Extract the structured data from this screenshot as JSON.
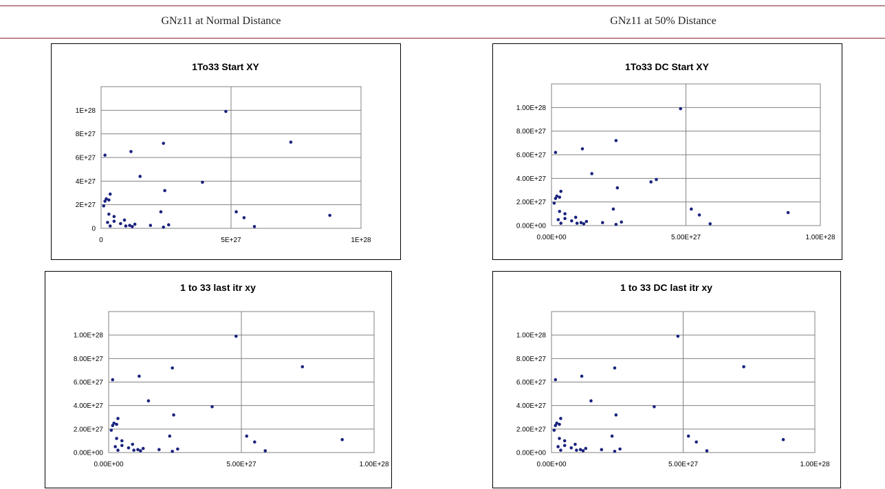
{
  "headers": {
    "left": "GNz11 at Normal Distance",
    "right": "GNz11 at 50% Distance"
  },
  "colors": {
    "marker": "#1a237e",
    "rule": "#8a2230",
    "grid": "#808080"
  },
  "chart_data": [
    {
      "type": "scatter",
      "title": "1To33 Start XY",
      "xlim": [
        0,
        1e+28
      ],
      "ylim": [
        0,
        1.2e+28
      ],
      "xticks": [
        0,
        5e+27,
        1e+28
      ],
      "xtick_labels": [
        "0",
        "5E+27",
        "1E+28"
      ],
      "yticks": [
        0,
        2e+27,
        4e+27,
        6e+27,
        8e+27,
        1e+28
      ],
      "ytick_labels": [
        "0",
        "2E+27",
        "4E+27",
        "6E+27",
        "8E+27",
        "1E+28"
      ],
      "grid": {
        "x": true,
        "y": true
      },
      "points": [
        [
          1e+26,
          1.9e+27
        ],
        [
          1.5e+26,
          2.3e+27
        ],
        [
          2e+26,
          2.5e+27
        ],
        [
          3e+26,
          2.4e+27
        ],
        [
          1.5e+26,
          6.2e+27
        ],
        [
          3.5e+26,
          2.9e+27
        ],
        [
          2.5e+26,
          5e+26
        ],
        [
          3e+26,
          1.2e+27
        ],
        [
          3.5e+26,
          2e+26
        ],
        [
          5e+26,
          1e+27
        ],
        [
          5e+26,
          6e+26
        ],
        [
          7.5e+26,
          4e+26
        ],
        [
          9e+26,
          7e+26
        ],
        [
          9.5e+26,
          2e+26
        ],
        [
          1.1e+27,
          2.5e+26
        ],
        [
          1.2e+27,
          1.5e+26
        ],
        [
          1.3e+27,
          3.5e+26
        ],
        [
          1.15e+27,
          6.5e+27
        ],
        [
          1.5e+27,
          4.4e+27
        ],
        [
          1.9e+27,
          2.5e+26
        ],
        [
          2.3e+27,
          1.4e+27
        ],
        [
          2.4e+27,
          7.2e+27
        ],
        [
          2.45e+27,
          3.2e+27
        ],
        [
          2.4e+27,
          1e+26
        ],
        [
          2.6e+27,
          3e+26
        ],
        [
          3.9e+27,
          3.9e+27
        ],
        [
          4.8e+27,
          9.9e+27
        ],
        [
          5.2e+27,
          1.4e+27
        ],
        [
          5.5e+27,
          9e+26
        ],
        [
          5.9e+27,
          1.5e+26
        ],
        [
          7.3e+27,
          7.3e+27
        ],
        [
          8.8e+27,
          1.1e+27
        ]
      ]
    },
    {
      "type": "scatter",
      "title": "1To33 DC Start XY",
      "xlim": [
        0,
        1e+28
      ],
      "ylim": [
        0,
        1.2e+28
      ],
      "xticks": [
        0,
        5e+27,
        1e+28
      ],
      "xtick_labels": [
        "0.00E+00",
        "5.00E+27",
        "1.00E+28"
      ],
      "yticks": [
        0,
        2e+27,
        4e+27,
        6e+27,
        8e+27,
        1e+28
      ],
      "ytick_labels": [
        "0.00E+00",
        "2.00E+27",
        "4.00E+27",
        "6.00E+27",
        "8.00E+27",
        "1.00E+28"
      ],
      "grid": {
        "x": true,
        "y": true
      },
      "points": [
        [
          1e+26,
          1.9e+27
        ],
        [
          1.5e+26,
          2.3e+27
        ],
        [
          2e+26,
          2.5e+27
        ],
        [
          3e+26,
          2.4e+27
        ],
        [
          1.5e+26,
          6.2e+27
        ],
        [
          3.5e+26,
          2.9e+27
        ],
        [
          2.5e+26,
          5e+26
        ],
        [
          3e+26,
          1.2e+27
        ],
        [
          3.5e+26,
          2e+26
        ],
        [
          5e+26,
          1e+27
        ],
        [
          5e+26,
          6e+26
        ],
        [
          7.5e+26,
          4e+26
        ],
        [
          9e+26,
          7e+26
        ],
        [
          9.5e+26,
          2e+26
        ],
        [
          1.1e+27,
          2.5e+26
        ],
        [
          1.2e+27,
          1.5e+26
        ],
        [
          1.3e+27,
          3.5e+26
        ],
        [
          1.15e+27,
          6.5e+27
        ],
        [
          1.5e+27,
          4.4e+27
        ],
        [
          1.9e+27,
          2.5e+26
        ],
        [
          2.3e+27,
          1.4e+27
        ],
        [
          2.4e+27,
          7.2e+27
        ],
        [
          2.45e+27,
          3.2e+27
        ],
        [
          2.4e+27,
          1e+26
        ],
        [
          2.6e+27,
          3e+26
        ],
        [
          3.7e+27,
          3.7e+27
        ],
        [
          3.9e+27,
          3.9e+27
        ],
        [
          4.8e+27,
          9.9e+27
        ],
        [
          5.2e+27,
          1.4e+27
        ],
        [
          5.5e+27,
          9e+26
        ],
        [
          5.9e+27,
          1.5e+26
        ],
        [
          8.8e+27,
          1.1e+27
        ]
      ]
    },
    {
      "type": "scatter",
      "title": "1 to 33 last itr xy",
      "xlim": [
        0,
        1e+28
      ],
      "ylim": [
        0,
        1.2e+28
      ],
      "xticks": [
        0,
        5e+27,
        1e+28
      ],
      "xtick_labels": [
        "0.00E+00",
        "5.00E+27",
        "1.00E+28"
      ],
      "yticks": [
        0,
        2e+27,
        4e+27,
        6e+27,
        8e+27,
        1e+28
      ],
      "ytick_labels": [
        "0.00E+00",
        "2.00E+27",
        "4.00E+27",
        "6.00E+27",
        "8.00E+27",
        "1.00E+28"
      ],
      "grid": {
        "x": true,
        "y": true
      },
      "points": [
        [
          1e+26,
          1.9e+27
        ],
        [
          1.5e+26,
          2.3e+27
        ],
        [
          2e+26,
          2.5e+27
        ],
        [
          3e+26,
          2.4e+27
        ],
        [
          1.5e+26,
          6.2e+27
        ],
        [
          3.5e+26,
          2.9e+27
        ],
        [
          2.5e+26,
          5e+26
        ],
        [
          3e+26,
          1.2e+27
        ],
        [
          3.5e+26,
          2e+26
        ],
        [
          5e+26,
          1e+27
        ],
        [
          5e+26,
          6e+26
        ],
        [
          7.5e+26,
          4e+26
        ],
        [
          9e+26,
          7e+26
        ],
        [
          9.5e+26,
          2e+26
        ],
        [
          1.1e+27,
          2.5e+26
        ],
        [
          1.2e+27,
          1.5e+26
        ],
        [
          1.3e+27,
          3.5e+26
        ],
        [
          1.15e+27,
          6.5e+27
        ],
        [
          1.5e+27,
          4.4e+27
        ],
        [
          1.9e+27,
          2.5e+26
        ],
        [
          2.3e+27,
          1.4e+27
        ],
        [
          2.4e+27,
          7.2e+27
        ],
        [
          2.45e+27,
          3.2e+27
        ],
        [
          2.4e+27,
          1e+26
        ],
        [
          2.6e+27,
          3e+26
        ],
        [
          3.9e+27,
          3.9e+27
        ],
        [
          4.8e+27,
          9.9e+27
        ],
        [
          5.2e+27,
          1.4e+27
        ],
        [
          5.5e+27,
          9e+26
        ],
        [
          5.9e+27,
          1.5e+26
        ],
        [
          7.3e+27,
          7.3e+27
        ],
        [
          8.8e+27,
          1.1e+27
        ]
      ]
    },
    {
      "type": "scatter",
      "title": "1 to 33 DC last itr xy",
      "xlim": [
        0,
        1e+28
      ],
      "ylim": [
        0,
        1.2e+28
      ],
      "xticks": [
        0,
        5e+27,
        1e+28
      ],
      "xtick_labels": [
        "0.00E+00",
        "5.00E+27",
        "1.00E+28"
      ],
      "yticks": [
        0,
        2e+27,
        4e+27,
        6e+27,
        8e+27,
        1e+28
      ],
      "ytick_labels": [
        "0.00E+00",
        "2.00E+27",
        "4.00E+27",
        "6.00E+27",
        "8.00E+27",
        "1.00E+28"
      ],
      "grid": {
        "x": true,
        "y": true
      },
      "points": [
        [
          1e+26,
          1.9e+27
        ],
        [
          1.5e+26,
          2.3e+27
        ],
        [
          2e+26,
          2.5e+27
        ],
        [
          3e+26,
          2.4e+27
        ],
        [
          1.5e+26,
          6.2e+27
        ],
        [
          3.5e+26,
          2.9e+27
        ],
        [
          2.5e+26,
          5e+26
        ],
        [
          3e+26,
          1.2e+27
        ],
        [
          3.5e+26,
          2e+26
        ],
        [
          5e+26,
          1e+27
        ],
        [
          5e+26,
          6e+26
        ],
        [
          7.5e+26,
          4e+26
        ],
        [
          9e+26,
          7e+26
        ],
        [
          9.5e+26,
          2e+26
        ],
        [
          1.1e+27,
          2.5e+26
        ],
        [
          1.2e+27,
          1.5e+26
        ],
        [
          1.3e+27,
          3.5e+26
        ],
        [
          1.15e+27,
          6.5e+27
        ],
        [
          1.5e+27,
          4.4e+27
        ],
        [
          1.9e+27,
          2.5e+26
        ],
        [
          2.3e+27,
          1.4e+27
        ],
        [
          2.4e+27,
          7.2e+27
        ],
        [
          2.45e+27,
          3.2e+27
        ],
        [
          2.4e+27,
          1e+26
        ],
        [
          2.6e+27,
          3e+26
        ],
        [
          3.9e+27,
          3.9e+27
        ],
        [
          4.8e+27,
          9.9e+27
        ],
        [
          5.2e+27,
          1.4e+27
        ],
        [
          5.5e+27,
          9e+26
        ],
        [
          5.9e+27,
          1.5e+26
        ],
        [
          7.3e+27,
          7.3e+27
        ],
        [
          8.8e+27,
          1.1e+27
        ]
      ]
    }
  ]
}
